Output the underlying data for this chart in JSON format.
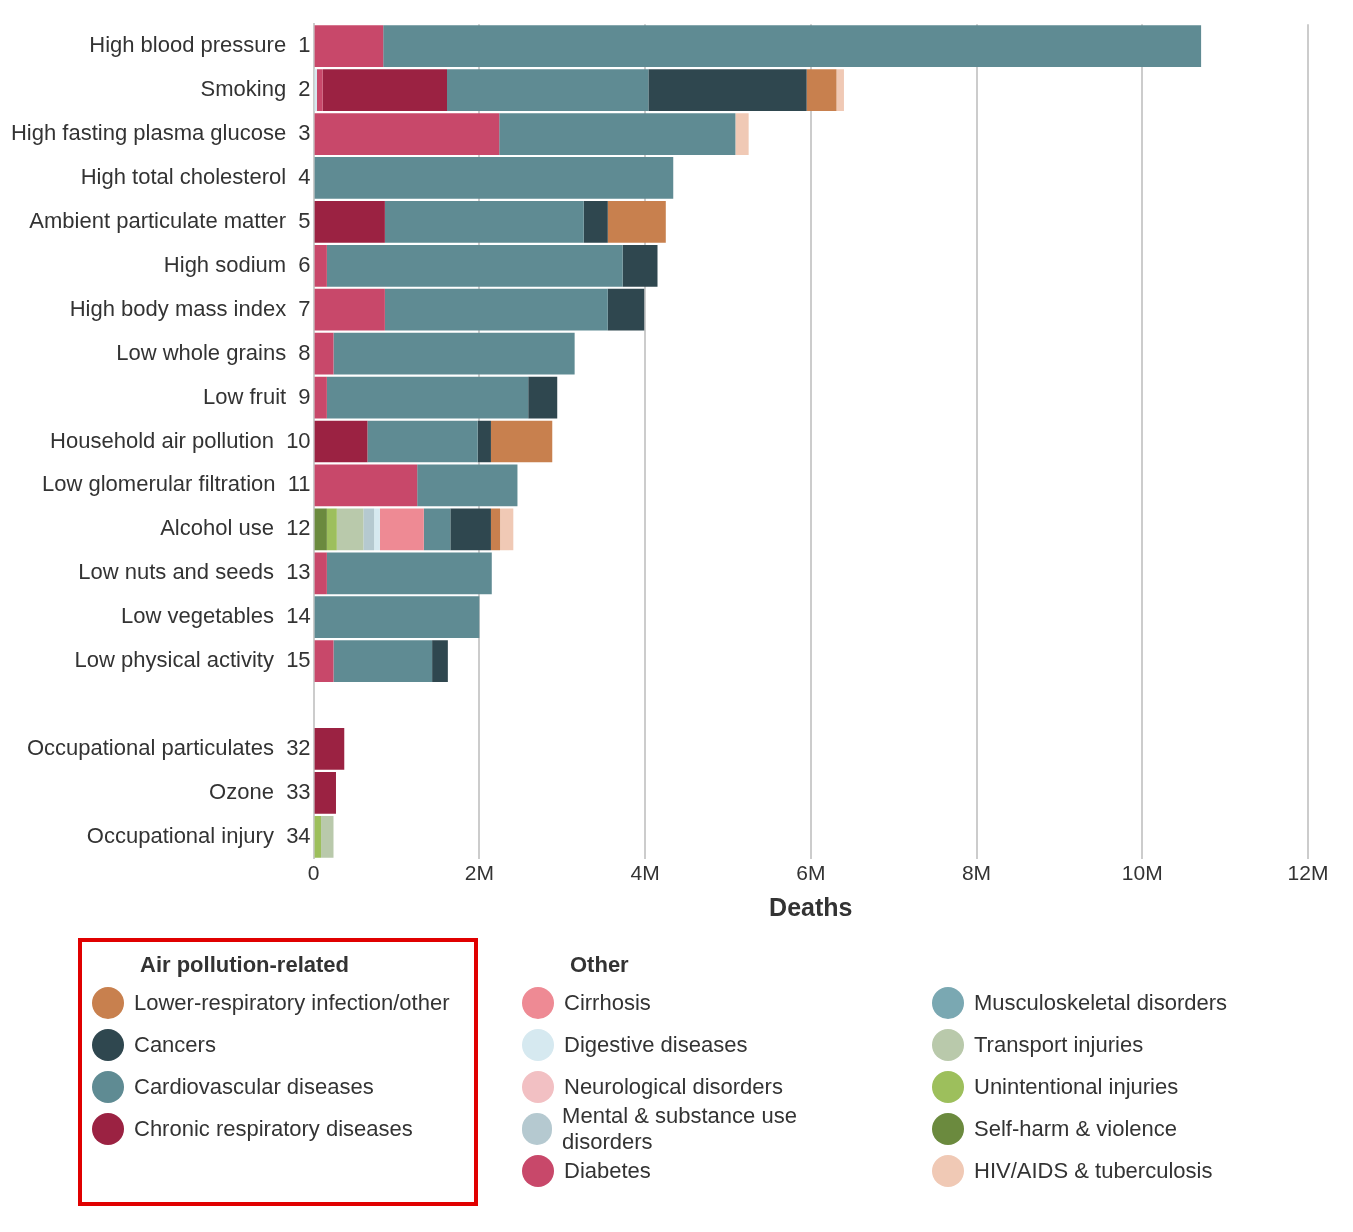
{
  "chart_data": {
    "type": "bar",
    "orientation": "horizontal",
    "stacked": true,
    "xlabel": "Deaths",
    "categories": [
      "High blood pressure  1",
      "Smoking  2",
      "High fasting plasma glucose  3",
      "High total cholesterol  4",
      "Ambient particulate matter  5",
      "High sodium  6",
      "High body mass index  7",
      "Low whole grains  8",
      "Low fruit  9",
      "Household air pollution  10",
      "Low glomerular filtration  11",
      "Alcohol use  12",
      "Low nuts and seeds  13",
      "Low vegetables  14",
      "Low physical activity  15",
      null,
      "Occupational particulates  32",
      "Ozone  33",
      "Occupational injury  34"
    ],
    "series": [
      {
        "name": "Self-harm & violence",
        "color": "#6b8a3e",
        "values": [
          null,
          null,
          null,
          null,
          null,
          null,
          null,
          null,
          null,
          null,
          null,
          0.16,
          null,
          null,
          null,
          null,
          null,
          null,
          null
        ]
      },
      {
        "name": "Unintentional injuries",
        "color": "#9dbf5c",
        "values": [
          null,
          null,
          null,
          null,
          null,
          null,
          null,
          null,
          null,
          null,
          null,
          0.12,
          null,
          null,
          null,
          null,
          null,
          null,
          0.09
        ]
      },
      {
        "name": "Transport injuries",
        "color": "#b9c9ab",
        "values": [
          null,
          null,
          null,
          null,
          null,
          null,
          null,
          null,
          null,
          null,
          null,
          0.32,
          null,
          null,
          null,
          null,
          null,
          null,
          0.15
        ]
      },
      {
        "name": "Mental & substance use disorders",
        "color": "#b5c9d0",
        "values": [
          null,
          null,
          null,
          null,
          null,
          null,
          null,
          null,
          null,
          null,
          null,
          0.13,
          null,
          null,
          null,
          null,
          null,
          null,
          null
        ]
      },
      {
        "name": "Digestive diseases",
        "color": "#d6e9f0",
        "values": [
          null,
          0.04,
          null,
          null,
          null,
          null,
          null,
          null,
          null,
          null,
          null,
          0.07,
          null,
          null,
          null,
          null,
          null,
          null,
          null
        ]
      },
      {
        "name": "Neurological disorders",
        "color": "#f2c0c3",
        "values": [
          null,
          null,
          null,
          null,
          null,
          null,
          null,
          null,
          null,
          null,
          null,
          null,
          null,
          null,
          null,
          null,
          null,
          null,
          null
        ]
      },
      {
        "name": "Cirrhosis",
        "color": "#ee8a94",
        "values": [
          null,
          null,
          null,
          null,
          null,
          null,
          null,
          null,
          null,
          null,
          null,
          0.53,
          null,
          null,
          null,
          null,
          null,
          null,
          null
        ]
      },
      {
        "name": "Diabetes",
        "color": "#c8486a",
        "values": [
          0.84,
          0.07,
          2.24,
          null,
          null,
          0.16,
          0.86,
          0.24,
          0.16,
          null,
          1.25,
          null,
          0.16,
          null,
          0.24,
          null,
          null,
          null,
          null
        ]
      },
      {
        "name": "Chronic respiratory diseases",
        "color": "#9b2242",
        "values": [
          null,
          1.5,
          null,
          null,
          0.86,
          null,
          null,
          null,
          null,
          0.65,
          null,
          null,
          null,
          null,
          null,
          null,
          0.37,
          0.27,
          null
        ]
      },
      {
        "name": "Cardiovascular diseases",
        "color": "#5f8b93",
        "values": [
          9.87,
          2.43,
          2.85,
          4.34,
          2.4,
          3.57,
          2.69,
          2.91,
          2.43,
          1.33,
          1.21,
          0.32,
          1.99,
          2.0,
          1.19,
          null,
          null,
          null,
          null
        ]
      },
      {
        "name": "Musculoskeletal disorders",
        "color": "#7aa8b2",
        "values": [
          null,
          null,
          null,
          null,
          null,
          null,
          null,
          null,
          null,
          null,
          null,
          null,
          null,
          null,
          null,
          null,
          null,
          null,
          null
        ]
      },
      {
        "name": "Cancers",
        "color": "#2f474f",
        "values": [
          null,
          1.91,
          null,
          null,
          0.29,
          0.42,
          0.44,
          null,
          0.35,
          0.16,
          null,
          0.49,
          null,
          null,
          0.19,
          null,
          null,
          null,
          null
        ]
      },
      {
        "name": "Lower-respiratory infection/other",
        "color": "#c8804e",
        "values": [
          null,
          0.36,
          null,
          null,
          0.7,
          null,
          null,
          null,
          null,
          0.74,
          null,
          0.11,
          null,
          null,
          null,
          null,
          null,
          null,
          null
        ]
      },
      {
        "name": "HIV/AIDS & tuberculosis",
        "color": "#f0c9b5",
        "values": [
          null,
          0.09,
          0.16,
          null,
          null,
          null,
          null,
          null,
          null,
          null,
          null,
          0.16,
          null,
          null,
          null,
          null,
          null,
          null,
          null
        ]
      }
    ],
    "xlim": [
      0,
      12
    ],
    "xticks": [
      0,
      {
        "value": 2,
        "label": "2M"
      },
      {
        "value": 4,
        "label": "4M"
      },
      {
        "value": 6,
        "label": "6M"
      },
      {
        "value": 8,
        "label": "8M"
      },
      {
        "value": 10,
        "label": "10M"
      },
      {
        "value": 12,
        "label": "12M"
      }
    ],
    "grid": "x",
    "legend": "bottom",
    "annotations": [
      "Air pollution-related",
      "Other"
    ]
  }
}
